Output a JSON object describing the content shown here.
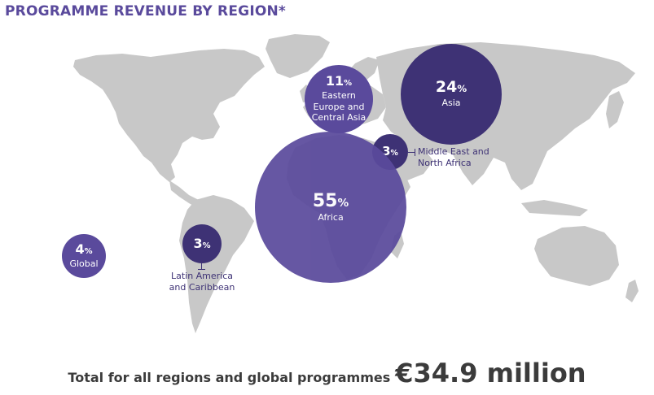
{
  "title": "PROGRAMME REVENUE BY REGION*",
  "colors": {
    "land": "#c8c8c8",
    "bubble_light": "#5a4a9c",
    "bubble_dark": "#3e3275",
    "title": "#5a4a9c",
    "text": "#3b3b3b"
  },
  "regions": [
    {
      "id": "eastern-europe",
      "pct": "11",
      "sign": "%",
      "label_lines": [
        "Eastern",
        "Europe and",
        "Central Asia"
      ],
      "value": 11
    },
    {
      "id": "asia",
      "pct": "24",
      "sign": "%",
      "label_lines": [
        "Asia"
      ],
      "value": 24
    },
    {
      "id": "middle-east",
      "pct": "3",
      "sign": "%",
      "external_label_lines": [
        "Middle East and",
        "North Africa"
      ],
      "value": 3
    },
    {
      "id": "africa",
      "pct": "55",
      "sign": "%",
      "label_lines": [
        "Africa"
      ],
      "value": 55
    },
    {
      "id": "latin-america",
      "pct": "3",
      "sign": "%",
      "external_label_lines": [
        "Latin America",
        "and Caribbean"
      ],
      "value": 3
    },
    {
      "id": "global",
      "pct": "4",
      "sign": "%",
      "label_lines": [
        "Global"
      ],
      "value": 4
    }
  ],
  "total": {
    "label": "Total for all regions and global programmes",
    "value": "€34.9 million"
  }
}
